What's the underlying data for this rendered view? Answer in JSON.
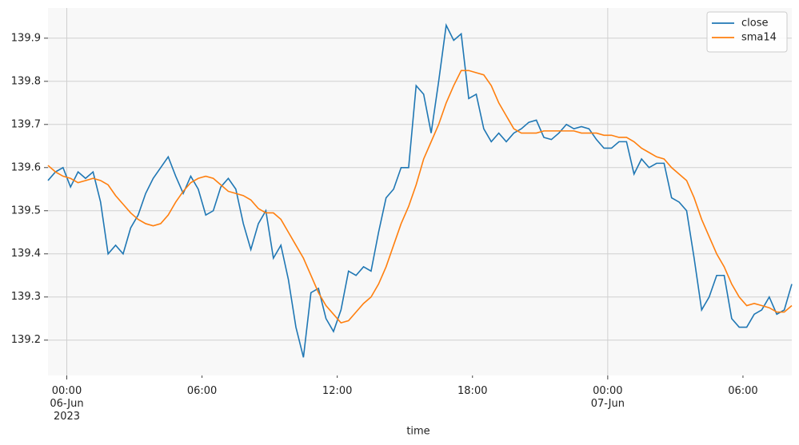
{
  "chart_data": {
    "type": "line",
    "x_label": "time",
    "x": [
      "2023-06-05 23:10",
      "2023-06-05 23:30",
      "2023-06-05 23:50",
      "2023-06-06 00:10",
      "2023-06-06 00:30",
      "2023-06-06 00:50",
      "2023-06-06 01:10",
      "2023-06-06 01:30",
      "2023-06-06 01:50",
      "2023-06-06 02:10",
      "2023-06-06 02:30",
      "2023-06-06 02:50",
      "2023-06-06 03:10",
      "2023-06-06 03:30",
      "2023-06-06 03:50",
      "2023-06-06 04:10",
      "2023-06-06 04:30",
      "2023-06-06 04:50",
      "2023-06-06 05:10",
      "2023-06-06 05:30",
      "2023-06-06 05:50",
      "2023-06-06 06:10",
      "2023-06-06 06:30",
      "2023-06-06 06:50",
      "2023-06-06 07:10",
      "2023-06-06 07:30",
      "2023-06-06 07:50",
      "2023-06-06 08:10",
      "2023-06-06 08:30",
      "2023-06-06 08:50",
      "2023-06-06 09:10",
      "2023-06-06 09:30",
      "2023-06-06 09:50",
      "2023-06-06 10:10",
      "2023-06-06 10:30",
      "2023-06-06 10:50",
      "2023-06-06 11:10",
      "2023-06-06 11:30",
      "2023-06-06 11:50",
      "2023-06-06 12:10",
      "2023-06-06 12:30",
      "2023-06-06 12:50",
      "2023-06-06 13:10",
      "2023-06-06 13:30",
      "2023-06-06 13:50",
      "2023-06-06 14:10",
      "2023-06-06 14:30",
      "2023-06-06 14:50",
      "2023-06-06 15:10",
      "2023-06-06 15:30",
      "2023-06-06 15:50",
      "2023-06-06 16:10",
      "2023-06-06 16:30",
      "2023-06-06 16:50",
      "2023-06-06 17:10",
      "2023-06-06 17:30",
      "2023-06-06 17:50",
      "2023-06-06 18:10",
      "2023-06-06 18:30",
      "2023-06-06 18:50",
      "2023-06-06 19:10",
      "2023-06-06 19:30",
      "2023-06-06 19:50",
      "2023-06-06 20:10",
      "2023-06-06 20:30",
      "2023-06-06 20:50",
      "2023-06-06 21:10",
      "2023-06-06 21:30",
      "2023-06-06 21:50",
      "2023-06-06 22:10",
      "2023-06-06 22:30",
      "2023-06-06 22:50",
      "2023-06-06 23:10",
      "2023-06-06 23:30",
      "2023-06-06 23:50",
      "2023-06-07 00:10",
      "2023-06-07 00:30",
      "2023-06-07 00:50",
      "2023-06-07 01:10",
      "2023-06-07 01:30",
      "2023-06-07 01:50",
      "2023-06-07 02:10",
      "2023-06-07 02:30",
      "2023-06-07 02:50",
      "2023-06-07 03:10",
      "2023-06-07 03:30",
      "2023-06-07 03:50",
      "2023-06-07 04:10",
      "2023-06-07 04:30",
      "2023-06-07 04:50",
      "2023-06-07 05:10",
      "2023-06-07 05:30",
      "2023-06-07 05:50",
      "2023-06-07 06:10",
      "2023-06-07 06:30",
      "2023-06-07 06:50",
      "2023-06-07 07:10",
      "2023-06-07 07:30",
      "2023-06-07 07:50",
      "2023-06-07 08:10"
    ],
    "series": [
      {
        "name": "close",
        "color": "#1f77b4",
        "values": [
          139.57,
          139.59,
          139.6,
          139.555,
          139.59,
          139.575,
          139.59,
          139.52,
          139.4,
          139.42,
          139.4,
          139.46,
          139.49,
          139.54,
          139.575,
          139.6,
          139.625,
          139.58,
          139.54,
          139.58,
          139.55,
          139.49,
          139.5,
          139.555,
          139.575,
          139.55,
          139.47,
          139.41,
          139.47,
          139.5,
          139.39,
          139.42,
          139.34,
          139.23,
          139.16,
          139.31,
          139.32,
          139.25,
          139.22,
          139.27,
          139.36,
          139.35,
          139.37,
          139.36,
          139.45,
          139.53,
          139.55,
          139.6,
          139.6,
          139.79,
          139.77,
          139.68,
          139.8,
          139.93,
          139.895,
          139.91,
          139.76,
          139.77,
          139.69,
          139.66,
          139.68,
          139.66,
          139.68,
          139.69,
          139.705,
          139.71,
          139.67,
          139.665,
          139.68,
          139.7,
          139.69,
          139.695,
          139.69,
          139.665,
          139.645,
          139.645,
          139.66,
          139.66,
          139.585,
          139.62,
          139.6,
          139.61,
          139.61,
          139.53,
          139.52,
          139.5,
          139.39,
          139.27,
          139.3,
          139.35,
          139.35,
          139.25,
          139.23,
          139.23,
          139.26,
          139.27,
          139.3,
          139.26,
          139.27,
          139.33
        ]
      },
      {
        "name": "sma14",
        "color": "#ff7f0e",
        "values": [
          139.605,
          139.59,
          139.58,
          139.575,
          139.565,
          139.57,
          139.575,
          139.57,
          139.56,
          139.535,
          139.515,
          139.495,
          139.48,
          139.47,
          139.465,
          139.47,
          139.49,
          139.52,
          139.545,
          139.565,
          139.575,
          139.58,
          139.575,
          139.56,
          139.545,
          139.54,
          139.535,
          139.525,
          139.505,
          139.495,
          139.495,
          139.48,
          139.45,
          139.42,
          139.39,
          139.35,
          139.31,
          139.28,
          139.26,
          139.24,
          139.245,
          139.265,
          139.285,
          139.3,
          139.33,
          139.37,
          139.42,
          139.47,
          139.51,
          139.56,
          139.62,
          139.66,
          139.7,
          139.75,
          139.79,
          139.825,
          139.825,
          139.82,
          139.815,
          139.79,
          139.75,
          139.72,
          139.69,
          139.68,
          139.68,
          139.68,
          139.685,
          139.685,
          139.685,
          139.685,
          139.685,
          139.68,
          139.68,
          139.68,
          139.675,
          139.675,
          139.67,
          139.67,
          139.66,
          139.645,
          139.635,
          139.625,
          139.62,
          139.6,
          139.585,
          139.57,
          139.53,
          139.48,
          139.44,
          139.4,
          139.37,
          139.33,
          139.3,
          139.28,
          139.285,
          139.28,
          139.275,
          139.265,
          139.265,
          139.28
        ]
      }
    ],
    "xlim": [
      "2023-06-05 23:10",
      "2023-06-07 08:10"
    ],
    "xticks": [
      {
        "value": "2023-06-06 00:00",
        "label": "00:00\n06-Jun\n2023"
      },
      {
        "value": "2023-06-07 00:00",
        "label": "00:00\n07-Jun"
      }
    ],
    "xminorticks": [
      {
        "value": "2023-06-06 06:00",
        "label": "06:00"
      },
      {
        "value": "2023-06-06 12:00",
        "label": "12:00"
      },
      {
        "value": "2023-06-06 18:00",
        "label": "18:00"
      },
      {
        "value": "2023-06-07 06:00",
        "label": "06:00"
      }
    ],
    "ylim": [
      139.118,
      139.97
    ],
    "yticks": [
      139.2,
      139.3,
      139.4,
      139.5,
      139.6,
      139.7,
      139.8,
      139.9
    ],
    "grid": "major",
    "legend": "upper right"
  }
}
